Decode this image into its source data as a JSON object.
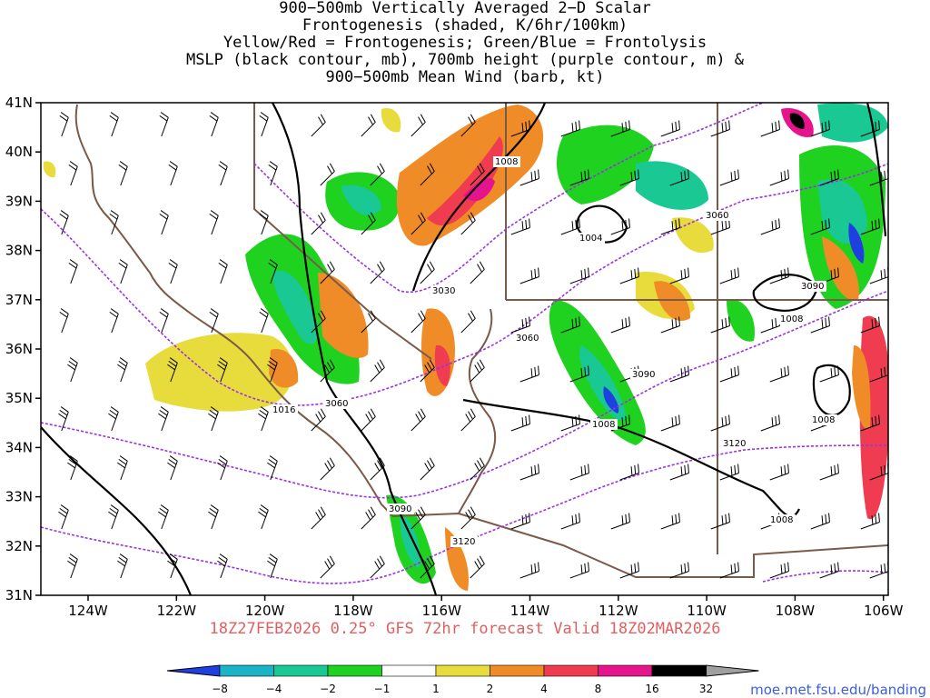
{
  "title_lines": [
    "900−500mb Vertically Averaged 2−D Scalar",
    "Frontogenesis (shaded, K/6hr/100km)",
    "Yellow/Red = Frontogenesis;  Green/Blue = Frontolysis",
    "MSLP (black contour, mb), 700mb height (purple contour, m) &",
    "900−500mb Mean Wind (barb, kt)"
  ],
  "lat_labels": [
    "41N",
    "40N",
    "39N",
    "38N",
    "37N",
    "36N",
    "35N",
    "34N",
    "33N",
    "32N",
    "31N"
  ],
  "lon_labels": [
    "124W",
    "122W",
    "120W",
    "118W",
    "116W",
    "114W",
    "112W",
    "110W",
    "108W",
    "106W"
  ],
  "contour_labels": {
    "mslp": [
      "1008",
      "1004",
      "1016",
      "1008",
      "1008",
      "1008",
      "1008"
    ],
    "height": [
      "3030",
      "3060",
      "3060",
      "3060",
      "3090",
      "3090",
      "3090",
      "3120",
      "3120"
    ]
  },
  "footer": "18Z27FEB2026 0.25° GFS 72hr forecast Valid 18Z02MAR2026",
  "colorbar": {
    "labels": [
      "−8",
      "−4",
      "−2",
      "−1",
      "1",
      "2",
      "4",
      "8",
      "16",
      "32"
    ],
    "colors": [
      "#1f3fe0",
      "#19b4c8",
      "#19c893",
      "#1fd21f",
      "#ffffff",
      "#e8dc3c",
      "#f08c28",
      "#f03c50",
      "#e6148c",
      "#000000",
      "#a0a0a0"
    ]
  },
  "credit": "moe.met.fsu.edu/banding"
}
